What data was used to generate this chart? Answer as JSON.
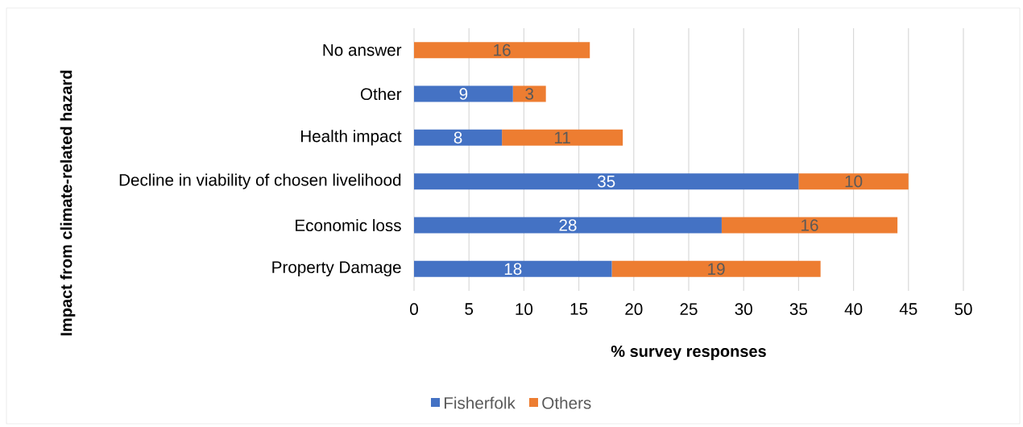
{
  "chart_data": {
    "type": "bar",
    "orientation": "horizontal",
    "stacked": true,
    "xlabel": "% survey responses",
    "ylabel": "Impact from climate-related hazard",
    "categories": [
      "No answer",
      "Other",
      "Health impact",
      "Decline in viability of chosen livelihood",
      "Economic loss",
      "Property Damage"
    ],
    "series": [
      {
        "name": "Fisherfolk",
        "color": "#4472c4",
        "values": [
          null,
          9,
          8,
          35,
          28,
          18
        ]
      },
      {
        "name": "Others",
        "color": "#ed7d31",
        "values": [
          16,
          3,
          11,
          10,
          16,
          19
        ]
      }
    ],
    "xlim": [
      0,
      50
    ],
    "xticks": [
      0,
      5,
      10,
      15,
      20,
      25,
      30,
      35,
      40,
      45,
      50
    ],
    "grid": "x",
    "legend": "bottom",
    "data_labels": true
  }
}
